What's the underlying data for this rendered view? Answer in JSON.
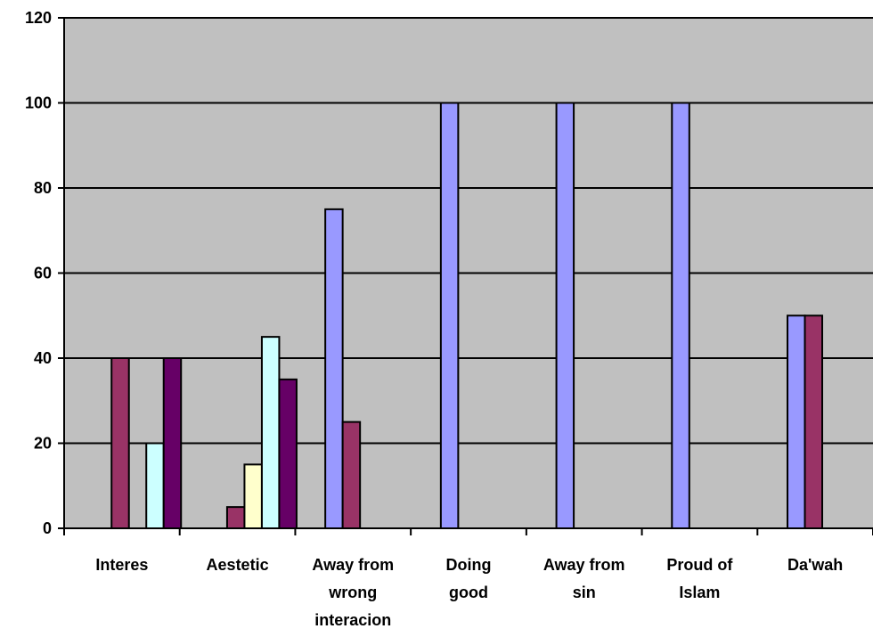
{
  "chart_data": {
    "type": "bar",
    "title": "",
    "xlabel": "",
    "ylabel": "",
    "ylim": [
      0,
      120
    ],
    "y_ticks": [
      "0",
      "20",
      "40",
      "60",
      "80",
      "100",
      "120"
    ],
    "grid": true,
    "legend": "none",
    "plot_background": "#c0c0c0",
    "categories": [
      [
        "Interes"
      ],
      [
        "Aestetic"
      ],
      [
        "Away from",
        "wrong",
        "interacion"
      ],
      [
        "Doing",
        "good"
      ],
      [
        "Away from",
        "sin"
      ],
      [
        "Proud of",
        "Islam"
      ],
      [
        "Da'wah"
      ]
    ],
    "series": [
      {
        "color": "#9999ff",
        "values": [
          0,
          0,
          75,
          100,
          100,
          100,
          50
        ]
      },
      {
        "color": "#993366",
        "values": [
          40,
          5,
          25,
          0,
          0,
          0,
          50
        ]
      },
      {
        "color": "#ffffcc",
        "values": [
          0,
          15,
          0,
          0,
          0,
          0,
          0
        ]
      },
      {
        "color": "#ccffff",
        "values": [
          20,
          45,
          0,
          0,
          0,
          0,
          0
        ]
      },
      {
        "color": "#660066",
        "values": [
          40,
          35,
          0,
          0,
          0,
          0,
          0
        ]
      }
    ]
  }
}
